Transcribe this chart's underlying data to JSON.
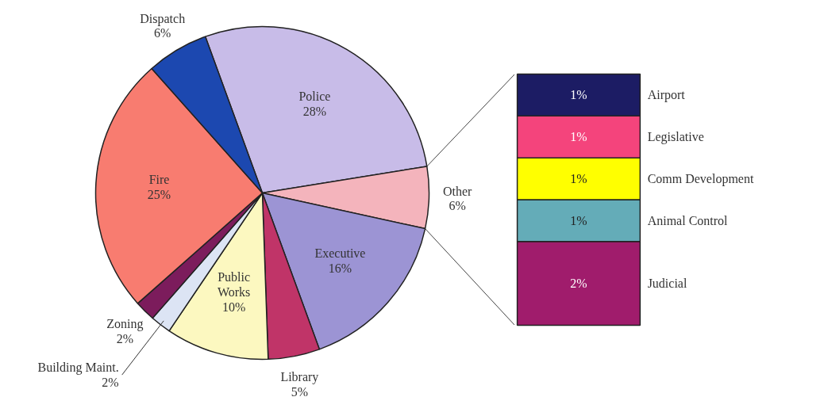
{
  "chart_data": [
    {
      "type": "pie",
      "categories": [
        "Police",
        "Other",
        "Executive",
        "Library",
        "Public Works",
        "Building Maint.",
        "Zoning",
        "Fire",
        "Dispatch"
      ],
      "values": [
        28,
        6,
        16,
        5,
        10,
        2,
        2,
        25,
        6
      ],
      "value_labels": [
        "28%",
        "6%",
        "16%",
        "5%",
        "10%",
        "2%",
        "2%",
        "25%",
        "6%"
      ],
      "colors": [
        "#c8bce8",
        "#f4b4bc",
        "#9c94d4",
        "#c03468",
        "#fcf8c0",
        "#dce4f4",
        "#7c1c5c",
        "#f87c70",
        "#1c48b0"
      ]
    },
    {
      "type": "bar",
      "stacked": true,
      "relative": false,
      "categories": [
        null
      ],
      "series": [
        {
          "name": "Judicial",
          "color": "#a01c6c",
          "values": [
            2
          ],
          "value_labels": [
            "2%"
          ]
        },
        {
          "name": "Animal Control",
          "color": "#64acb8",
          "values": [
            1
          ],
          "value_labels": [
            "1%"
          ]
        },
        {
          "name": "Comm Development",
          "color": "#ffff00",
          "values": [
            1
          ],
          "value_labels": [
            "1%"
          ]
        },
        {
          "name": "Legislative",
          "color": "#f4447c",
          "values": [
            1
          ],
          "value_labels": [
            "1%"
          ]
        },
        {
          "name": "Airport",
          "color": "#1c1c64",
          "values": [
            1
          ],
          "value_labels": [
            "1%"
          ]
        }
      ]
    }
  ]
}
